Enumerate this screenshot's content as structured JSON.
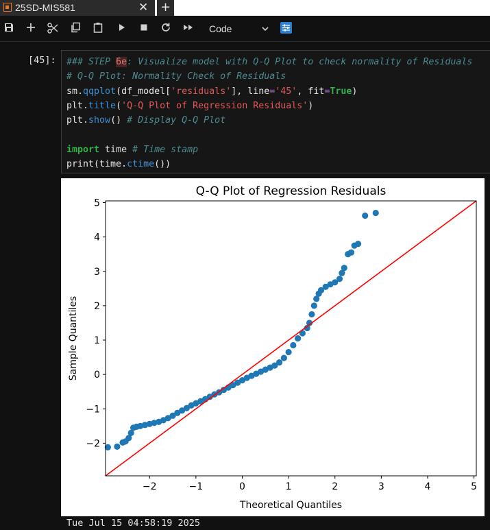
{
  "tab": {
    "title": "25SD-MIS581",
    "close": "✕",
    "add": "+"
  },
  "toolbar": {
    "buttons": [
      "save-icon",
      "add-icon",
      "cut-icon",
      "copy-icon",
      "paste-icon",
      "run-icon",
      "stop-icon",
      "restart-icon",
      "run-all-icon"
    ],
    "cell_type": "Code"
  },
  "cell": {
    "prompt": "[45]:",
    "code": [
      [
        [
          "cm",
          "### STEP "
        ],
        [
          "hl",
          "6e"
        ],
        [
          "cm",
          ": Visualize model with Q-Q Plot to check normality of Residuals"
        ]
      ],
      [
        [
          "cm",
          "# Q-Q Plot: Normality Check of Residuals"
        ]
      ],
      [
        [
          "n",
          "sm."
        ],
        [
          "fn",
          "qqplot"
        ],
        [
          "n",
          "(df_model["
        ],
        [
          "st",
          "'residuals'"
        ],
        [
          "n",
          "], line"
        ],
        [
          "eq",
          "="
        ],
        [
          "st",
          "'45'"
        ],
        [
          "n",
          ", fit"
        ],
        [
          "eq",
          "="
        ],
        [
          "bool",
          "True"
        ],
        [
          "n",
          ")"
        ]
      ],
      [
        [
          "n",
          "plt."
        ],
        [
          "fn",
          "title"
        ],
        [
          "n",
          "("
        ],
        [
          "st",
          "'Q-Q Plot of Regression Residuals'"
        ],
        [
          "n",
          ")"
        ]
      ],
      [
        [
          "n",
          "plt."
        ],
        [
          "fn",
          "show"
        ],
        [
          "n",
          "() "
        ],
        [
          "cm",
          "# Display Q-Q Plot"
        ]
      ],
      [
        [
          "n",
          ""
        ]
      ],
      [
        [
          "kw",
          "import"
        ],
        [
          "n",
          " time "
        ],
        [
          "cm",
          "# Time stamp"
        ]
      ],
      [
        [
          "n",
          "print(time."
        ],
        [
          "fn",
          "ctime"
        ],
        [
          "n",
          "())"
        ]
      ]
    ]
  },
  "chart_data": {
    "type": "scatter",
    "title": "Q-Q Plot of Regression Residuals",
    "xlabel": "Theoretical Quantiles",
    "ylabel": "Sample Quantiles",
    "xlim": [
      -2.95,
      5.05
    ],
    "ylim": [
      -2.95,
      5.05
    ],
    "xticks": [
      -2,
      -1,
      0,
      1,
      2,
      3,
      4,
      5
    ],
    "yticks": [
      -2,
      -1,
      0,
      1,
      2,
      3,
      4,
      5
    ],
    "reference_line": {
      "from": [
        -2.95,
        -2.95
      ],
      "to": [
        5.05,
        5.05
      ],
      "color": "#ff0000"
    },
    "point_color": "#1f77b4",
    "points": [
      [
        -2.9,
        -2.12
      ],
      [
        -2.7,
        -2.1
      ],
      [
        -2.58,
        -1.98
      ],
      [
        -2.52,
        -1.95
      ],
      [
        -2.45,
        -1.85
      ],
      [
        -2.4,
        -1.7
      ],
      [
        -2.35,
        -1.55
      ],
      [
        -2.28,
        -1.52
      ],
      [
        -2.2,
        -1.5
      ],
      [
        -2.1,
        -1.47
      ],
      [
        -2.0,
        -1.44
      ],
      [
        -1.9,
        -1.41
      ],
      [
        -1.8,
        -1.38
      ],
      [
        -1.7,
        -1.33
      ],
      [
        -1.6,
        -1.27
      ],
      [
        -1.5,
        -1.2
      ],
      [
        -1.4,
        -1.12
      ],
      [
        -1.3,
        -1.05
      ],
      [
        -1.2,
        -0.98
      ],
      [
        -1.1,
        -0.9
      ],
      [
        -1.0,
        -0.84
      ],
      [
        -0.9,
        -0.78
      ],
      [
        -0.8,
        -0.72
      ],
      [
        -0.7,
        -0.65
      ],
      [
        -0.6,
        -0.58
      ],
      [
        -0.5,
        -0.52
      ],
      [
        -0.4,
        -0.45
      ],
      [
        -0.3,
        -0.38
      ],
      [
        -0.2,
        -0.31
      ],
      [
        -0.1,
        -0.24
      ],
      [
        0.0,
        -0.17
      ],
      [
        0.1,
        -0.1
      ],
      [
        0.2,
        -0.04
      ],
      [
        0.3,
        0.02
      ],
      [
        0.4,
        0.08
      ],
      [
        0.5,
        0.14
      ],
      [
        0.6,
        0.2
      ],
      [
        0.7,
        0.26
      ],
      [
        0.8,
        0.35
      ],
      [
        0.9,
        0.48
      ],
      [
        1.0,
        0.65
      ],
      [
        1.1,
        0.85
      ],
      [
        1.2,
        1.05
      ],
      [
        1.3,
        1.2
      ],
      [
        1.4,
        1.35
      ],
      [
        1.45,
        1.5
      ],
      [
        1.5,
        1.75
      ],
      [
        1.55,
        2.0
      ],
      [
        1.6,
        2.2
      ],
      [
        1.65,
        2.35
      ],
      [
        1.7,
        2.45
      ],
      [
        1.8,
        2.55
      ],
      [
        1.9,
        2.62
      ],
      [
        2.0,
        2.68
      ],
      [
        2.1,
        2.78
      ],
      [
        2.15,
        2.95
      ],
      [
        2.2,
        3.1
      ],
      [
        2.28,
        3.5
      ],
      [
        2.35,
        3.55
      ],
      [
        2.42,
        3.75
      ],
      [
        2.5,
        3.8
      ],
      [
        2.65,
        4.62
      ],
      [
        2.88,
        4.7
      ]
    ]
  },
  "footer": {
    "timestamp": "Tue Jul 15 04:58:19 2025"
  }
}
